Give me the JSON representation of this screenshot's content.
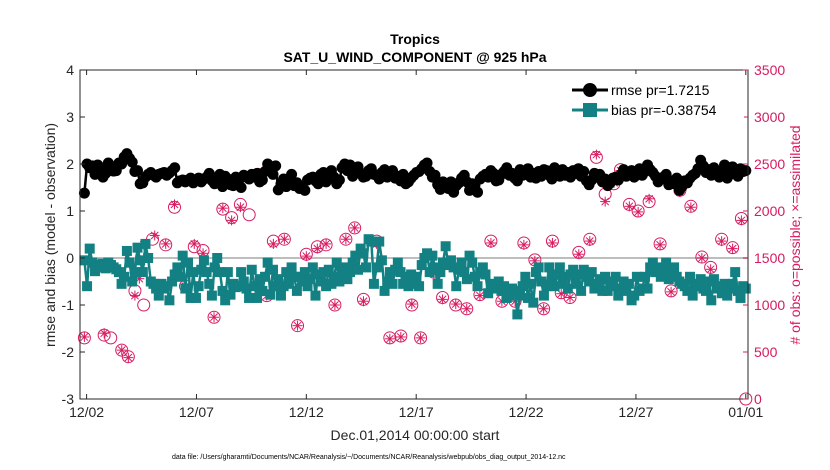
{
  "chart_data": {
    "type": "line",
    "title": "Tropics",
    "subtitle": "SAT_U_WIND_COMPONENT @ 925 hPa",
    "xlabel": "Dec.01,2014 00:00:00 start",
    "ylabel_left": "rmse and bias (model - observation)",
    "ylabel_right": "# of obs: o=possible; ×=assimilated",
    "footnote": "data file: /Users/gharamti/Documents/NCAR/Reanalysis/~/Documents/NCAR/Reanalysis/webpub/obs_diag_output_2014-12.nc",
    "x_ticks": [
      "12/02",
      "12/07",
      "12/12",
      "12/17",
      "12/22",
      "12/27",
      "01/01"
    ],
    "y_left_ticks": [
      "-3",
      "-2",
      "-1",
      "0",
      "1",
      "2",
      "3",
      "4"
    ],
    "y_right_ticks": [
      "0",
      "500",
      "1000",
      "1500",
      "2000",
      "2500",
      "3000",
      "3500"
    ],
    "ylim_left": [
      -3,
      4
    ],
    "ylim_right": [
      0,
      3500
    ],
    "xlim_days": [
      0.7,
      31.1
    ],
    "x_tick_days": [
      1,
      6,
      11,
      16,
      21,
      26,
      31
    ],
    "legend_position": "top-right",
    "colors": {
      "rmse": "#000000",
      "bias": "#138083",
      "obs": "#d81b60",
      "zero": "#bdbdbd"
    },
    "series": [
      {
        "name": "rmse pr=1.7215",
        "axis": "left",
        "values": [
          1.38,
          2.0,
          1.92,
          1.96,
          1.78,
          1.98,
          1.88,
          1.72,
          1.8,
          2.02,
          1.95,
          1.85,
          1.86,
          2.02,
          2.0,
          2.15,
          2.22,
          2.12,
          2.04,
          1.84,
          1.86,
          1.58,
          1.6,
          1.72,
          1.78,
          1.82,
          1.76,
          1.72,
          1.78,
          1.8,
          1.82,
          1.76,
          1.81,
          1.86,
          1.92,
          1.6,
          1.64,
          1.66,
          1.62,
          1.66,
          1.7,
          1.6,
          1.66,
          1.7,
          1.62,
          1.68,
          1.72,
          1.8,
          1.65,
          1.58,
          1.66,
          1.78,
          1.52,
          1.74,
          1.68,
          1.56,
          1.54,
          1.72,
          1.58,
          1.5,
          1.76,
          1.72,
          1.68,
          1.78,
          1.72,
          1.8,
          1.62,
          1.66,
          1.84,
          2.0,
          1.92,
          1.78,
          1.96,
          1.45,
          1.58,
          1.68,
          1.52,
          1.62,
          1.78,
          1.54,
          1.6,
          1.48,
          1.52,
          1.44,
          1.66,
          1.7,
          1.72,
          1.64,
          1.58,
          1.78,
          1.82,
          1.62,
          1.76,
          1.86,
          1.72,
          1.58,
          1.66,
          1.92,
          2.0,
          1.86,
          1.98,
          1.74,
          1.88,
          1.94,
          1.8,
          1.72,
          1.74,
          1.86,
          1.9,
          1.78,
          1.76,
          1.68,
          1.82,
          1.88,
          1.72,
          1.8,
          1.86,
          1.7,
          1.74,
          1.64,
          1.78,
          1.58,
          1.62,
          1.7,
          1.76,
          1.82,
          1.84,
          1.9,
          1.98,
          2.02,
          1.84,
          1.72,
          1.76,
          1.56,
          1.46,
          1.62,
          1.58,
          1.48,
          1.62,
          1.4,
          1.54,
          1.6,
          1.7,
          1.76,
          1.62,
          1.44,
          1.58,
          1.54,
          1.4,
          1.68,
          1.74,
          1.78,
          1.72,
          1.86,
          1.8,
          1.64,
          1.66,
          1.78,
          1.84,
          1.92,
          1.76,
          1.8,
          1.7,
          1.64,
          1.88,
          1.76,
          1.82,
          1.9,
          1.72,
          1.8,
          1.7,
          1.84,
          1.74,
          1.88,
          1.86,
          1.76,
          1.68,
          1.92,
          1.82,
          1.74,
          1.88,
          1.76,
          1.82,
          1.72,
          1.86,
          1.8,
          1.9,
          1.74,
          1.84,
          1.64,
          1.56,
          1.66,
          1.8,
          1.72,
          1.78,
          1.62,
          1.68,
          1.54,
          1.6,
          1.7,
          1.72,
          1.66,
          1.78,
          1.88,
          1.74,
          1.82,
          1.86,
          1.72,
          1.8,
          1.9,
          1.76,
          1.84,
          1.98,
          1.88,
          1.82,
          1.74,
          1.62,
          1.68,
          1.72,
          1.78,
          1.56,
          1.64,
          1.58,
          1.7,
          1.44,
          1.52,
          1.64,
          1.6,
          1.7,
          1.76,
          1.8,
          1.9,
          2.08,
          1.96,
          1.82,
          1.88,
          1.76,
          1.92,
          1.84,
          1.72,
          1.86,
          1.98,
          1.7,
          1.78,
          1.94,
          1.88,
          1.74,
          1.9,
          1.84,
          1.86
        ]
      },
      {
        "name": "bias pr=-0.38754",
        "axis": "left",
        "values": [
          -0.05,
          -0.6,
          0.2,
          -0.1,
          -0.28,
          -0.2,
          -0.18,
          -0.12,
          -0.22,
          -0.1,
          -0.15,
          -0.2,
          -0.24,
          -0.3,
          -0.55,
          -0.4,
          0.15,
          -0.1,
          -0.5,
          -0.3,
          0.22,
          -0.05,
          -0.3,
          0.3,
          0.0,
          -0.5,
          -0.55,
          -0.65,
          -0.8,
          -0.55,
          -0.65,
          -0.6,
          -0.9,
          -0.5,
          -0.35,
          -0.2,
          -0.4,
          0.05,
          -0.65,
          -0.1,
          -0.85,
          -0.3,
          -0.85,
          -0.6,
          -0.25,
          -0.05,
          -0.3,
          -0.55,
          -0.8,
          -0.2,
          0.0,
          -0.3,
          -0.7,
          -0.9,
          -0.3,
          -0.78,
          -0.55,
          -0.62,
          -0.6,
          -0.3,
          -0.5,
          -0.65,
          -0.85,
          -0.25,
          -0.6,
          -0.85,
          -0.45,
          -0.7,
          -0.4,
          -0.1,
          -0.78,
          -0.25,
          -0.6,
          -0.45,
          -0.8,
          -0.6,
          -0.3,
          -0.55,
          -0.2,
          -0.4,
          -0.7,
          -0.4,
          -0.5,
          -0.3,
          -0.6,
          -0.45,
          -0.2,
          -0.8,
          -0.35,
          -0.5,
          -0.3,
          -0.6,
          -0.25,
          -0.55,
          -0.4,
          -0.1,
          -0.5,
          -0.3,
          -0.2,
          -0.45,
          -0.3,
          -0.1,
          0.05,
          -0.25,
          0.2,
          0.1,
          -0.2,
          0.4,
          0.35,
          -0.55,
          -0.2,
          0.35,
          -0.05,
          -0.7,
          -0.5,
          -0.3,
          -0.55,
          -0.25,
          -0.1,
          -0.3,
          -0.55,
          -0.4,
          -0.6,
          -0.35,
          -0.55,
          -0.4,
          -0.6,
          -0.15,
          0.0,
          0.1,
          -0.3,
          0.05,
          -0.2,
          -0.55,
          -0.3,
          -0.1,
          0.25,
          -0.15,
          -0.05,
          -0.2,
          -0.6,
          -0.25,
          -0.1,
          -0.3,
          -0.45,
          0.05,
          -0.1,
          -0.4,
          -0.6,
          -0.3,
          -0.2,
          -0.35,
          -0.75,
          -0.55,
          -0.6,
          -0.65,
          -0.5,
          -0.7,
          -0.6,
          -0.85,
          -0.8,
          -0.65,
          -0.7,
          -1.2,
          -0.8,
          -0.6,
          -0.4,
          -0.85,
          -0.55,
          -0.95,
          -0.3,
          -0.2,
          -0.5,
          -0.8,
          -0.6,
          -0.2,
          -0.4,
          -0.6,
          -0.35,
          -0.2,
          -0.55,
          -0.4,
          -0.65,
          -0.35,
          -0.25,
          -0.55,
          -0.35,
          -0.7,
          -0.25,
          -0.4,
          -0.5,
          -0.3,
          -0.65,
          -0.55,
          -0.45,
          -0.7,
          -0.4,
          -0.7,
          -0.5,
          -0.6,
          -0.4,
          -0.8,
          -0.65,
          -0.5,
          -0.7,
          -0.55,
          -0.9,
          -0.8,
          -0.4,
          -0.7,
          -0.65,
          -0.4,
          -0.65,
          -0.2,
          -0.1,
          -0.3,
          -0.2,
          -0.4,
          -0.3,
          -0.1,
          -0.45,
          -0.3,
          -0.2,
          -0.4,
          -0.5,
          -0.55,
          -0.6,
          -0.7,
          -0.4,
          -0.8,
          -0.55,
          -0.6,
          -0.45,
          -0.65,
          -0.7,
          -0.5,
          -0.9,
          -0.45,
          -0.65,
          -0.6,
          -0.75,
          -0.55,
          -0.8,
          -0.65,
          -0.55,
          -0.3,
          -0.7,
          -0.85,
          -0.6,
          -0.65
        ]
      }
    ],
    "obs_possible": [
      [
        0.9,
        650
      ],
      [
        1.8,
        680
      ],
      [
        2.1,
        650
      ],
      [
        2.6,
        520
      ],
      [
        2.9,
        450
      ],
      [
        3.2,
        1150
      ],
      [
        3.6,
        1000
      ],
      [
        4.0,
        1700
      ],
      [
        4.6,
        1640
      ],
      [
        5.0,
        2040
      ],
      [
        5.5,
        1200
      ],
      [
        5.9,
        1620
      ],
      [
        6.3,
        1580
      ],
      [
        6.8,
        870
      ],
      [
        7.2,
        2020
      ],
      [
        7.6,
        1930
      ],
      [
        8.0,
        2070
      ],
      [
        8.4,
        1960
      ],
      [
        8.8,
        2390
      ],
      [
        9.2,
        1100
      ],
      [
        9.5,
        1680
      ],
      [
        10.0,
        1700
      ],
      [
        10.6,
        780
      ],
      [
        11.0,
        1540
      ],
      [
        11.5,
        1620
      ],
      [
        11.9,
        1640
      ],
      [
        12.3,
        1000
      ],
      [
        12.8,
        1700
      ],
      [
        13.2,
        1820
      ],
      [
        13.6,
        1060
      ],
      [
        14.2,
        1680
      ],
      [
        14.8,
        650
      ],
      [
        15.3,
        670
      ],
      [
        15.8,
        1000
      ],
      [
        16.2,
        650
      ],
      [
        16.8,
        1350
      ],
      [
        17.2,
        1080
      ],
      [
        17.8,
        1000
      ],
      [
        18.3,
        960
      ],
      [
        18.9,
        1110
      ],
      [
        19.4,
        1680
      ],
      [
        19.9,
        1040
      ],
      [
        20.5,
        1040
      ],
      [
        20.9,
        1660
      ],
      [
        21.4,
        1480
      ],
      [
        21.8,
        960
      ],
      [
        22.2,
        1680
      ],
      [
        22.6,
        1130
      ],
      [
        23.0,
        1080
      ],
      [
        23.4,
        1560
      ],
      [
        23.9,
        1700
      ],
      [
        24.2,
        2570
      ],
      [
        24.6,
        2180
      ],
      [
        25.0,
        2290
      ],
      [
        25.3,
        2440
      ],
      [
        25.7,
        2070
      ],
      [
        26.1,
        2000
      ],
      [
        26.6,
        2100
      ],
      [
        27.1,
        1650
      ],
      [
        27.6,
        1150
      ],
      [
        28.0,
        2220
      ],
      [
        28.5,
        2050
      ],
      [
        29.0,
        1510
      ],
      [
        29.4,
        1400
      ],
      [
        29.9,
        1700
      ],
      [
        30.4,
        1610
      ],
      [
        30.8,
        1920
      ],
      [
        31.0,
        0
      ]
    ],
    "obs_assimilated": [
      [
        0.9,
        660
      ],
      [
        1.5,
        1430
      ],
      [
        1.8,
        700
      ],
      [
        2.6,
        520
      ],
      [
        2.9,
        440
      ],
      [
        3.2,
        1100
      ],
      [
        3.4,
        1280
      ],
      [
        3.6,
        1640
      ],
      [
        4.1,
        1740
      ],
      [
        4.6,
        1650
      ],
      [
        5.0,
        2070
      ],
      [
        5.5,
        1200
      ],
      [
        5.9,
        1650
      ],
      [
        6.3,
        1550
      ],
      [
        6.8,
        870
      ],
      [
        7.2,
        2030
      ],
      [
        7.6,
        1900
      ],
      [
        8.0,
        2040
      ],
      [
        8.8,
        2380
      ],
      [
        9.2,
        1100
      ],
      [
        9.5,
        1650
      ],
      [
        10.0,
        1700
      ],
      [
        10.6,
        780
      ],
      [
        11.0,
        1520
      ],
      [
        11.5,
        1600
      ],
      [
        11.9,
        1650
      ],
      [
        12.3,
        1000
      ],
      [
        12.8,
        1700
      ],
      [
        13.2,
        1820
      ],
      [
        13.6,
        1040
      ],
      [
        14.2,
        1650
      ],
      [
        14.8,
        640
      ],
      [
        15.3,
        660
      ],
      [
        15.8,
        1010
      ],
      [
        16.2,
        650
      ],
      [
        16.8,
        1340
      ],
      [
        17.2,
        1060
      ],
      [
        17.8,
        1010
      ],
      [
        18.3,
        960
      ],
      [
        18.9,
        1100
      ],
      [
        19.4,
        1660
      ],
      [
        19.9,
        1040
      ],
      [
        20.5,
        1040
      ],
      [
        20.9,
        1640
      ],
      [
        21.4,
        1470
      ],
      [
        21.8,
        960
      ],
      [
        22.2,
        1660
      ],
      [
        22.6,
        1120
      ],
      [
        23.0,
        1080
      ],
      [
        23.4,
        1540
      ],
      [
        23.9,
        1680
      ],
      [
        24.2,
        2600
      ],
      [
        24.6,
        2100
      ],
      [
        25.0,
        2300
      ],
      [
        25.3,
        2430
      ],
      [
        25.7,
        2050
      ],
      [
        26.1,
        1990
      ],
      [
        26.6,
        2130
      ],
      [
        27.1,
        1640
      ],
      [
        27.6,
        1140
      ],
      [
        28.0,
        2200
      ],
      [
        28.5,
        2040
      ],
      [
        29.0,
        1500
      ],
      [
        29.4,
        1380
      ],
      [
        29.9,
        1680
      ],
      [
        30.4,
        1600
      ],
      [
        30.8,
        1900
      ]
    ]
  }
}
